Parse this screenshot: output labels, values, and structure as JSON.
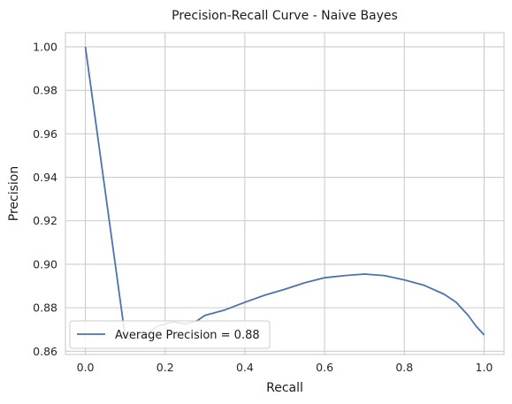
{
  "chart_data": {
    "type": "line",
    "title": "Precision-Recall Curve - Naive Bayes",
    "xlabel": "Recall",
    "ylabel": "Precision",
    "xlim": [
      -0.05,
      1.05
    ],
    "ylim": [
      0.8585,
      1.0065
    ],
    "xticks": [
      0.0,
      0.2,
      0.4,
      0.6,
      0.8,
      1.0
    ],
    "xtick_labels": [
      "0.0",
      "0.2",
      "0.4",
      "0.6",
      "0.8",
      "1.0"
    ],
    "yticks": [
      0.86,
      0.88,
      0.9,
      0.92,
      0.94,
      0.96,
      0.98,
      1.0
    ],
    "ytick_labels": [
      "0.86",
      "0.88",
      "0.90",
      "0.92",
      "0.94",
      "0.96",
      "0.98",
      "1.00"
    ],
    "grid": true,
    "legend_position": "lower-left",
    "series": [
      {
        "name": "Average Precision = 0.88",
        "color": "#4c72b0",
        "x": [
          0.0,
          0.1,
          0.12,
          0.15,
          0.18,
          0.22,
          0.25,
          0.28,
          0.3,
          0.35,
          0.4,
          0.45,
          0.5,
          0.55,
          0.6,
          0.65,
          0.7,
          0.75,
          0.8,
          0.85,
          0.9,
          0.93,
          0.96,
          0.98,
          1.0
        ],
        "y": [
          1.0,
          0.8665,
          0.8655,
          0.867,
          0.8715,
          0.8735,
          0.8725,
          0.874,
          0.8765,
          0.879,
          0.8825,
          0.8858,
          0.8885,
          0.8915,
          0.8938,
          0.8948,
          0.8955,
          0.8948,
          0.8928,
          0.8903,
          0.8862,
          0.8825,
          0.8765,
          0.8715,
          0.8675
        ]
      }
    ]
  }
}
